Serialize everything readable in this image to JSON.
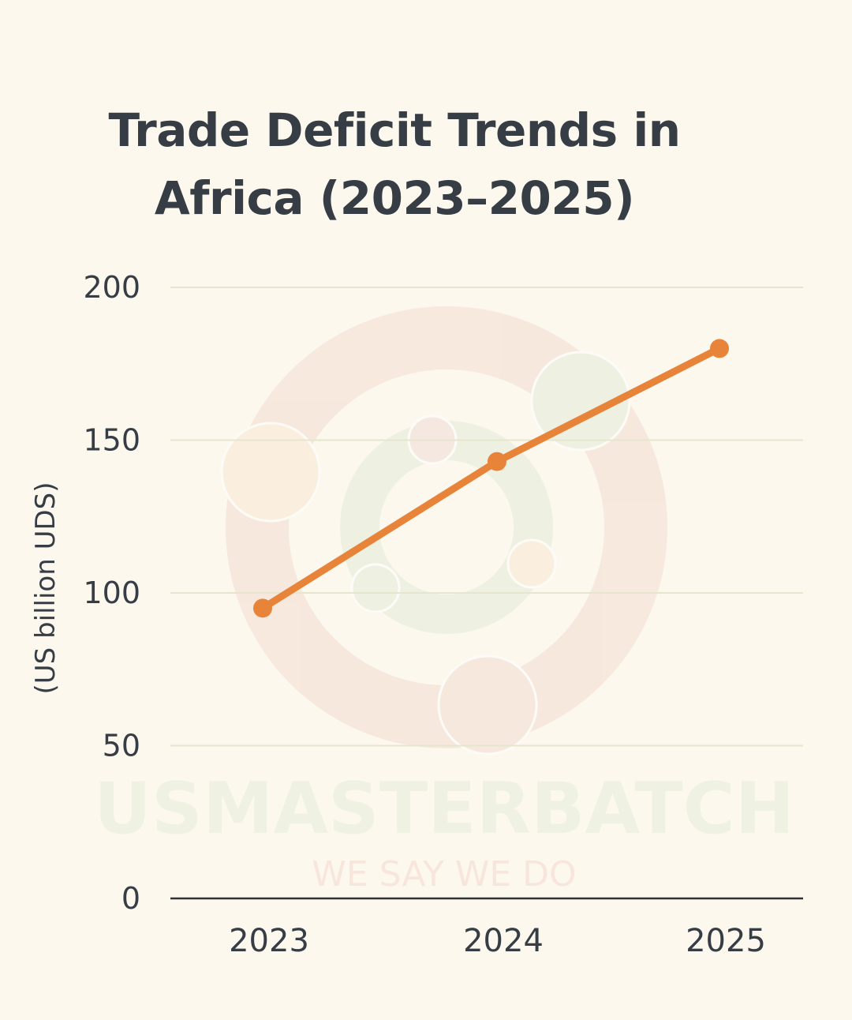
{
  "watermark": {
    "brand": "USMASTERBATCH",
    "tagline": "WE SAY WE DO"
  },
  "chart_data": {
    "type": "line",
    "title": "Trade Deficit Trends in Africa (2023–2025)",
    "title_lines": [
      "Trade Deficit Trends in",
      "Africa (2023–2025)"
    ],
    "xlabel": "",
    "ylabel": "(US billion UDS)",
    "categories": [
      "2023",
      "2024",
      "2025"
    ],
    "values": [
      95,
      143,
      180
    ],
    "ylim": [
      0,
      200
    ],
    "yticks": [
      "0",
      "50",
      "100",
      "150",
      "200"
    ],
    "grid": true,
    "legend": "none",
    "line_color": "#e8843a"
  }
}
